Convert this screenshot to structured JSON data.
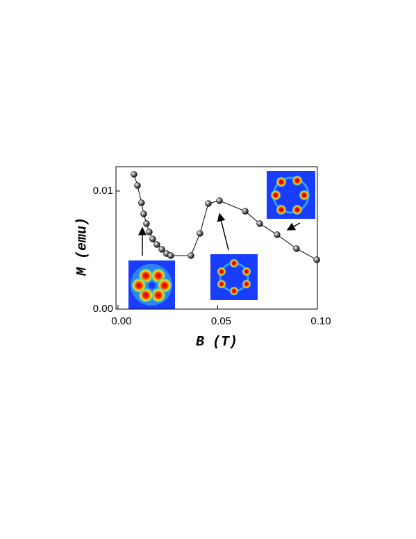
{
  "chart_data": {
    "type": "scatter-line",
    "x_label": "B (T)",
    "y_label": "M (emu)",
    "x": [
      0.008,
      0.0098,
      0.0118,
      0.0129,
      0.0143,
      0.0157,
      0.0174,
      0.0195,
      0.022,
      0.0244,
      0.0265,
      0.0366,
      0.0411,
      0.0453,
      0.0509,
      0.0638,
      0.0711,
      0.0798,
      0.0895,
      0.0997
    ],
    "values": [
      0.01141,
      0.01047,
      0.009,
      0.00806,
      0.00724,
      0.00653,
      0.00594,
      0.00547,
      0.00506,
      0.0047,
      0.00453,
      0.00453,
      0.00641,
      0.00894,
      0.00918,
      0.00829,
      0.00724,
      0.0063,
      0.00512,
      0.00418
    ],
    "color": "#000000",
    "xlim": [
      -0.001,
      0.1
    ],
    "ylim": [
      0,
      0.01206
    ],
    "xticks": [
      {
        "value": 0,
        "label": "0.00"
      },
      {
        "value": 0.05,
        "label": "0.05"
      },
      {
        "value": 0.1,
        "label": "0.10"
      }
    ],
    "yticks": [
      {
        "value": 0,
        "label": "0.00"
      },
      {
        "value": 0.01,
        "label": "0.01"
      }
    ]
  }
}
